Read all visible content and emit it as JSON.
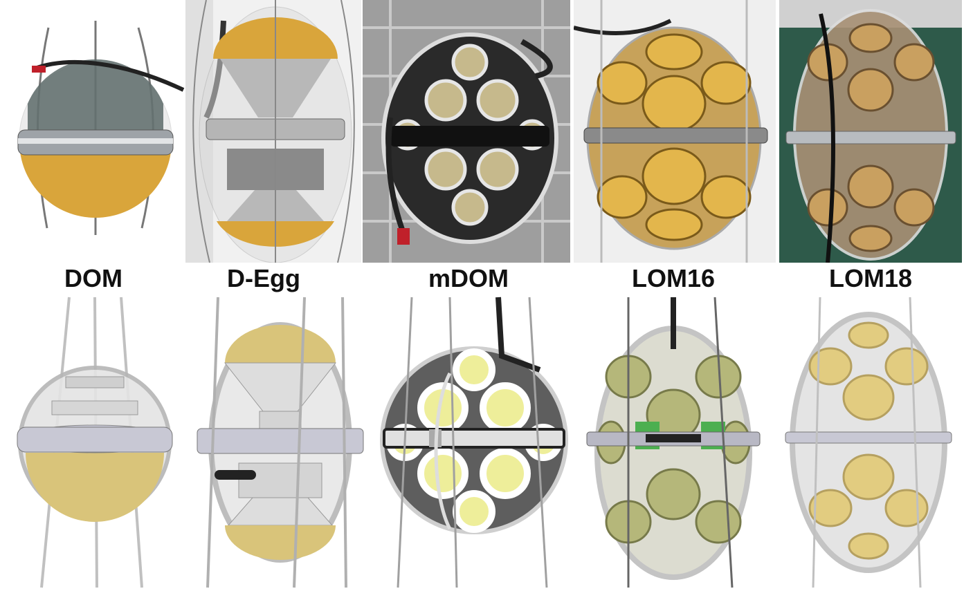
{
  "modules": [
    {
      "id": "dom",
      "label": "DOM"
    },
    {
      "id": "degg",
      "label": "D-Egg"
    },
    {
      "id": "mdom",
      "label": "mDOM"
    },
    {
      "id": "lom16",
      "label": "LOM16"
    },
    {
      "id": "lom18",
      "label": "LOM18"
    }
  ],
  "colors": {
    "gold": "#d9a53b",
    "glass": "#d8d8d8",
    "pmt_yellow": "#e8e27a",
    "pmt_tan": "#d9c47a",
    "wire": "#bfbfbf",
    "mdom_background": "#9e9e9e",
    "lom18_background": "#2e5a4a"
  }
}
